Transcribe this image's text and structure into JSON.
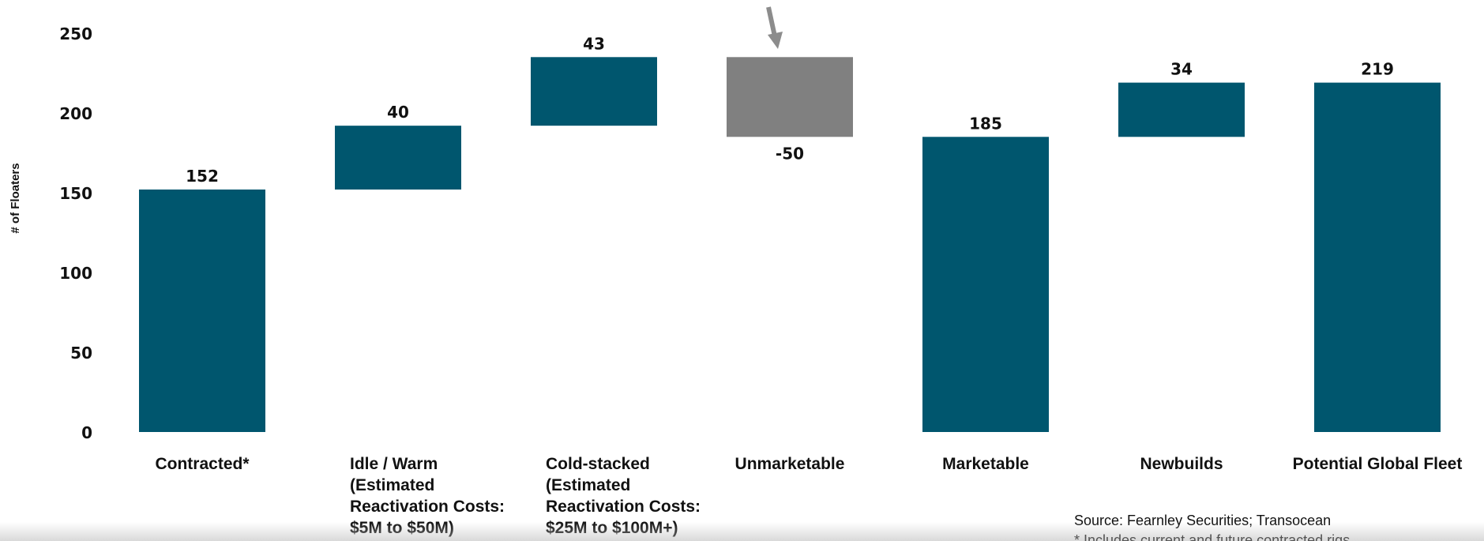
{
  "chart_data": {
    "type": "bar",
    "subtype": "waterfall",
    "categories": [
      "Contracted*",
      "Idle / Warm",
      "Cold-stacked",
      "Unmarketable",
      "Marketable",
      "Newbuilds",
      "Potential Global Fleet"
    ],
    "category_sublabels": [
      [],
      [
        "(Estimated",
        "Reactivation Costs:",
        "$5M to $50M)"
      ],
      [
        "(Estimated",
        "Reactivation Costs:",
        "$25M to $100M+)"
      ],
      [],
      [],
      [],
      []
    ],
    "values": [
      152,
      40,
      43,
      -50,
      185,
      34,
      219
    ],
    "data_labels": [
      "152",
      "40",
      "43",
      "-50",
      "185",
      "34",
      "219"
    ],
    "bar_ranges": [
      [
        0,
        152
      ],
      [
        152,
        192
      ],
      [
        192,
        235
      ],
      [
        185,
        235
      ],
      [
        0,
        185
      ],
      [
        185,
        219
      ],
      [
        0,
        219
      ]
    ],
    "bar_kinds": [
      "total",
      "increase",
      "increase",
      "decrease",
      "total",
      "increase",
      "total"
    ],
    "ylabel": "# of Floaters",
    "ylim": [
      0,
      250
    ],
    "yticks": [
      "0",
      "50",
      "100",
      "150",
      "200",
      "250"
    ],
    "grid": false,
    "colors": {
      "main": "#00566e",
      "decrease": "#808080",
      "arrow": "#8c8c8c"
    },
    "annotation": "arrow-pointing-down-at-unmarketable-bar"
  },
  "source": "Source: Fearnley Securities; Transocean",
  "footnote": "* Includes current and future contracted rigs"
}
